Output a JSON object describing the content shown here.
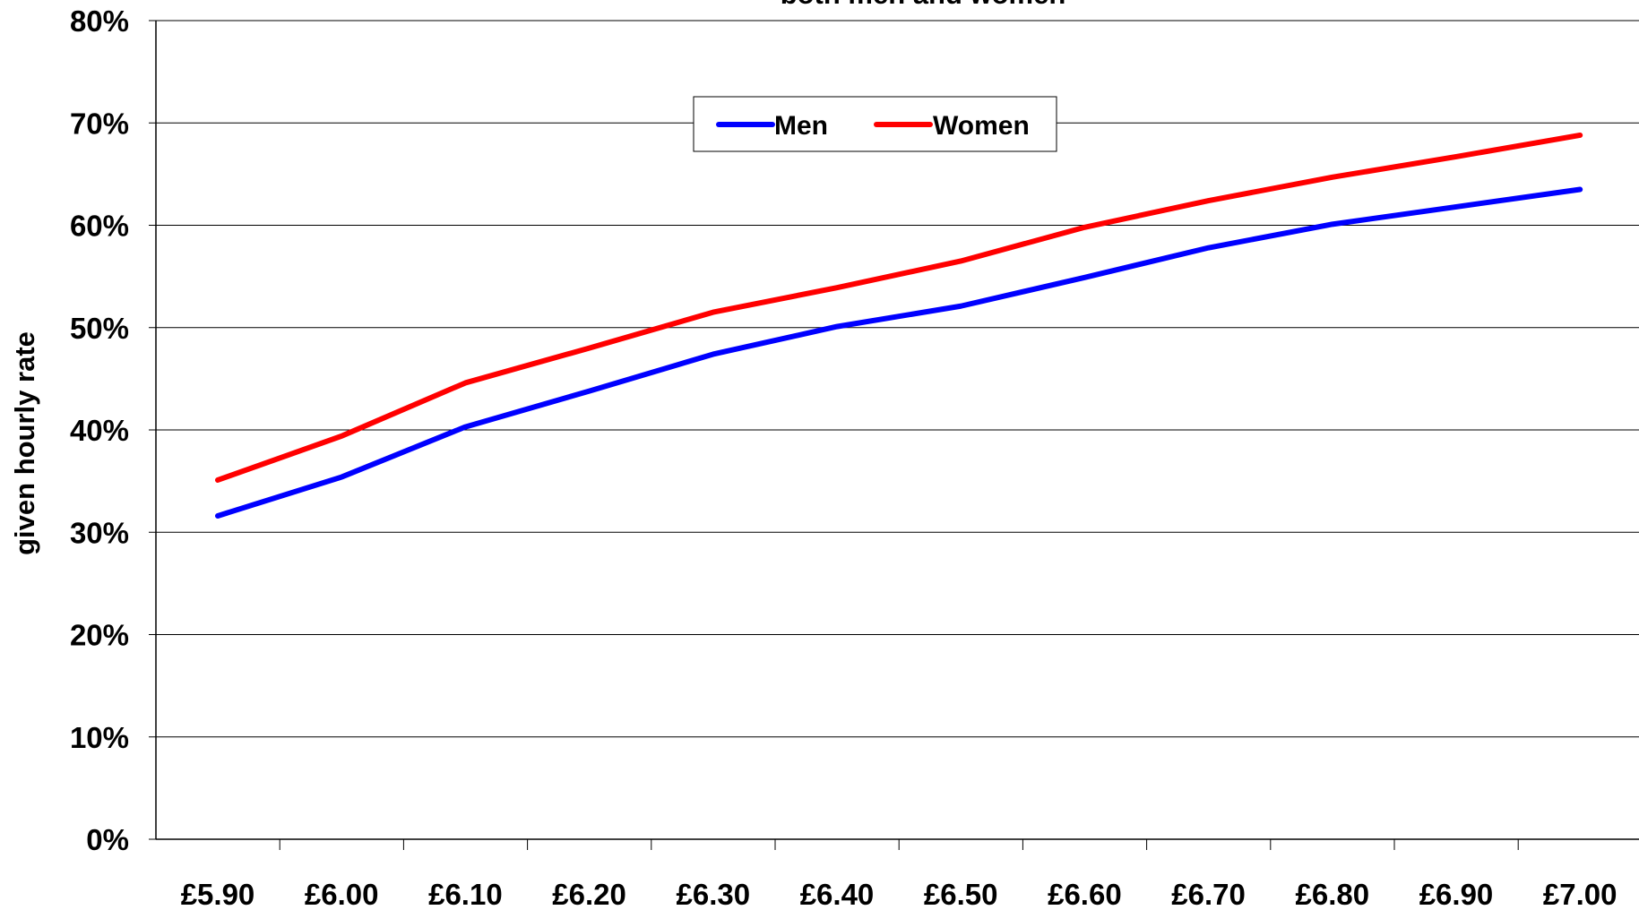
{
  "chart_data": {
    "type": "line",
    "title": "both men and women",
    "ylabel": "given hourly rate",
    "xlabel": "",
    "categories": [
      "£5.90",
      "£6.00",
      "£6.10",
      "£6.20",
      "£6.30",
      "£6.40",
      "£6.50",
      "£6.60",
      "£6.70",
      "£6.80",
      "£6.90",
      "£7.00"
    ],
    "y_tick_labels": [
      "0%",
      "10%",
      "20%",
      "30%",
      "40%",
      "50%",
      "60%",
      "70%",
      "80%"
    ],
    "ylim": [
      0,
      80
    ],
    "y_unit": "%",
    "grid": "horizontal",
    "legend": {
      "placement": "top-center",
      "entries": [
        "Men",
        "Women"
      ]
    },
    "series": [
      {
        "name": "Men",
        "color": "#0000ff",
        "values": [
          31.6,
          35.4,
          40.3,
          43.8,
          47.4,
          50.1,
          52.1,
          54.9,
          57.8,
          60.1,
          61.8,
          63.5
        ]
      },
      {
        "name": "Women",
        "color": "#ff0000",
        "values": [
          35.1,
          39.4,
          44.6,
          48.0,
          51.5,
          53.9,
          56.5,
          59.8,
          62.4,
          64.7,
          66.7,
          68.8
        ]
      }
    ]
  }
}
